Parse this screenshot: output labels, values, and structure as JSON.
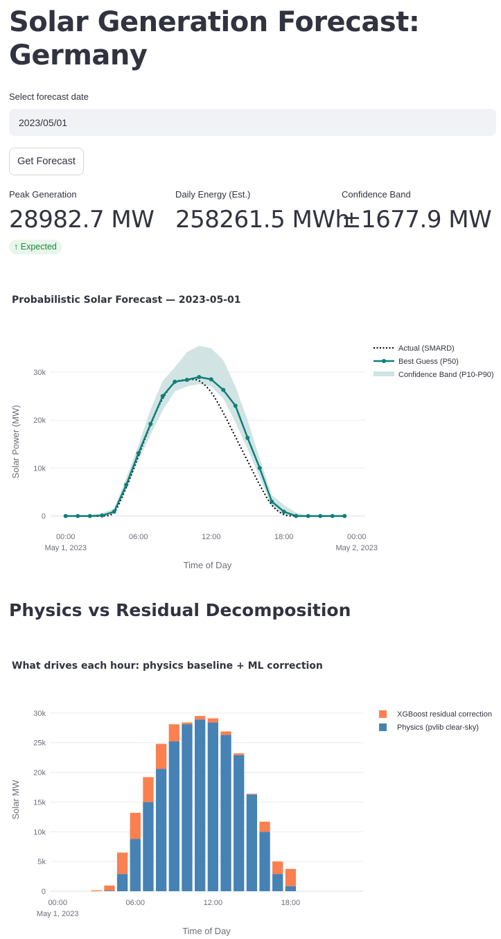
{
  "page": {
    "title": "Solar Generation Forecast: Germany",
    "date_label": "Select forecast date",
    "date_value": "2023/05/01",
    "forecast_button": "Get Forecast"
  },
  "metrics": [
    {
      "label": "Peak Generation",
      "value": "28982.7 MW",
      "delta": "Expected"
    },
    {
      "label": "Daily Energy (Est.)",
      "value": "258261.5 MWh"
    },
    {
      "label": "Confidence Band",
      "value": "±1677.9 MW"
    }
  ],
  "section_title": "Physics vs Residual Decomposition",
  "colors": {
    "p50": "#0f7f7a",
    "band": "#cfe3e2",
    "actual": "#000000",
    "physics": "#4682b4",
    "residual": "#fa8050"
  },
  "chart_data": [
    {
      "type": "line",
      "title": "Probabilistic Solar Forecast — 2023-05-01",
      "xlabel": "Time of Day",
      "ylabel": "Solar Power (MW)",
      "x_ticks": [
        {
          "hour": 0,
          "label": "00:00",
          "sub": "May 1, 2023"
        },
        {
          "hour": 6,
          "label": "06:00",
          "sub": ""
        },
        {
          "hour": 12,
          "label": "12:00",
          "sub": ""
        },
        {
          "hour": 18,
          "label": "18:00",
          "sub": ""
        },
        {
          "hour": 24,
          "label": "00:00",
          "sub": "May 2, 2023"
        }
      ],
      "y_ticks": [
        {
          "value": 0,
          "label": "0"
        },
        {
          "value": 10000,
          "label": "10k"
        },
        {
          "value": 20000,
          "label": "20k"
        },
        {
          "value": 30000,
          "label": "30k"
        }
      ],
      "xlim": [
        -1.3,
        24.7
      ],
      "ylim": [
        -1500,
        36800
      ],
      "hours": [
        0,
        1,
        2,
        3,
        4,
        5,
        6,
        7,
        8,
        9,
        10,
        11,
        12,
        13,
        14,
        15,
        16,
        17,
        18,
        19,
        20,
        21,
        22,
        23
      ],
      "series": [
        {
          "name": "Actual (SMARD)",
          "style": "dotted",
          "values": [
            0,
            0,
            0,
            0,
            800,
            6000,
            12500,
            19000,
            24500,
            27800,
            28400,
            28200,
            25800,
            21500,
            16500,
            11500,
            6500,
            2300,
            300,
            0,
            0,
            0,
            0,
            0
          ]
        },
        {
          "name": "Best Guess (P50)",
          "style": "line+markers",
          "values": [
            0,
            0,
            0,
            100,
            900,
            6500,
            13100,
            19200,
            25000,
            28000,
            28400,
            28983,
            28500,
            26300,
            23000,
            16300,
            10000,
            3000,
            900,
            0,
            0,
            0,
            0,
            0
          ]
        },
        {
          "name": "Confidence Band (P10-P90)",
          "style": "band",
          "lower": [
            0,
            0,
            0,
            0,
            500,
            5500,
            11500,
            17000,
            22000,
            26000,
            27000,
            27500,
            27000,
            24500,
            19500,
            14000,
            8000,
            2000,
            200,
            0,
            0,
            0,
            0,
            0
          ],
          "upper": [
            0,
            0,
            200,
            600,
            1600,
            8000,
            14800,
            22200,
            28200,
            31000,
            34200,
            35500,
            35000,
            32500,
            27000,
            20000,
            12000,
            4400,
            2300,
            700,
            0,
            0,
            0,
            0
          ]
        }
      ],
      "legend": "top-right",
      "grid": true
    },
    {
      "type": "bar",
      "stacked": true,
      "title": "What drives each hour: physics baseline + ML correction",
      "xlabel": "Time of Day",
      "ylabel": "Solar MW",
      "x_ticks": [
        {
          "hour": 0,
          "label": "00:00",
          "sub": "May 1, 2023"
        },
        {
          "hour": 6,
          "label": "06:00",
          "sub": ""
        },
        {
          "hour": 12,
          "label": "12:00",
          "sub": ""
        },
        {
          "hour": 18,
          "label": "18:00",
          "sub": ""
        }
      ],
      "y_ticks": [
        {
          "value": 0,
          "label": "0"
        },
        {
          "value": 5000,
          "label": "5k"
        },
        {
          "value": 10000,
          "label": "10k"
        },
        {
          "value": 15000,
          "label": "15k"
        },
        {
          "value": 20000,
          "label": "20k"
        },
        {
          "value": 25000,
          "label": "25k"
        },
        {
          "value": 30000,
          "label": "30k"
        }
      ],
      "xlim": [
        -0.6,
        23.6
      ],
      "ylim": [
        0,
        30800
      ],
      "hours": [
        0,
        1,
        2,
        3,
        4,
        5,
        6,
        7,
        8,
        9,
        10,
        11,
        12,
        13,
        14,
        15,
        16,
        17,
        18,
        19,
        20,
        21,
        22,
        23
      ],
      "series": [
        {
          "name": "XGBoost residual correction",
          "values": [
            0,
            0,
            0,
            150,
            850,
            3600,
            4400,
            4200,
            4200,
            2900,
            300,
            600,
            700,
            600,
            300,
            100,
            1700,
            2100,
            2900,
            0,
            0,
            0,
            0,
            0
          ]
        },
        {
          "name": "Physics (pvlib clear-sky)",
          "values": [
            0,
            0,
            0,
            0,
            100,
            2900,
            8800,
            15000,
            20600,
            25200,
            28100,
            28900,
            28400,
            26300,
            22900,
            16300,
            10000,
            2900,
            850,
            0,
            0,
            0,
            0,
            0
          ]
        }
      ],
      "legend": "top-right",
      "grid": true
    }
  ]
}
